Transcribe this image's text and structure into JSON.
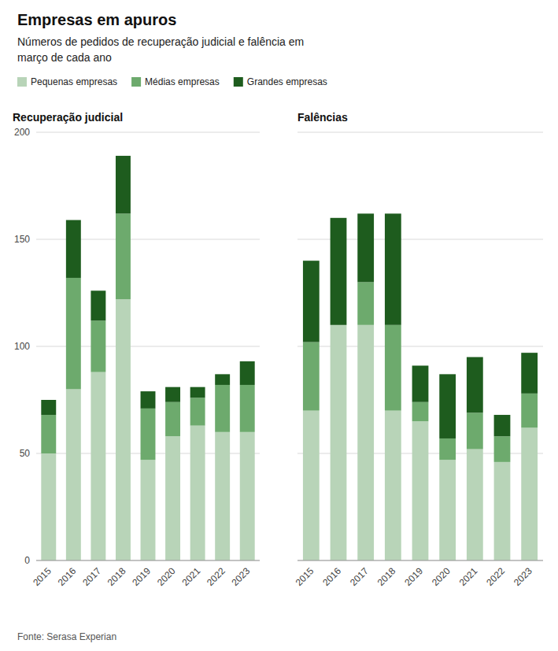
{
  "title": "Empresas em apuros",
  "subtitle": "Números de pedidos de recuperação judicial e falência em\nmarço de cada ano",
  "annotations": [
    "Fonte: Serasa Experian"
  ],
  "chart_data": [
    {
      "type": "bar",
      "stacked": true,
      "title": "Recuperação judicial",
      "categories": [
        "2015",
        "2016",
        "2017",
        "2018",
        "2019",
        "2020",
        "2021",
        "2022",
        "2023"
      ],
      "series": [
        {
          "name": "Pequenas empresas",
          "color": "#b8d4b8",
          "values": [
            50,
            80,
            88,
            122,
            47,
            58,
            63,
            60,
            60
          ]
        },
        {
          "name": "Médias empresas",
          "color": "#6daa6d",
          "values": [
            18,
            52,
            24,
            40,
            24,
            16,
            13,
            22,
            22
          ]
        },
        {
          "name": "Grandes empresas",
          "color": "#1e5c1e",
          "values": [
            7,
            27,
            14,
            27,
            8,
            7,
            5,
            5,
            11
          ]
        }
      ],
      "ylim": [
        0,
        200
      ],
      "yticks": [
        0,
        50,
        100,
        150,
        200
      ],
      "grid": true,
      "legend": "top"
    },
    {
      "type": "bar",
      "stacked": true,
      "title": "Falências",
      "categories": [
        "2015",
        "2016",
        "2017",
        "2018",
        "2019",
        "2020",
        "2021",
        "2022",
        "2023"
      ],
      "series": [
        {
          "name": "Pequenas empresas",
          "color": "#b8d4b8",
          "values": [
            70,
            110,
            110,
            70,
            65,
            47,
            52,
            46,
            62
          ]
        },
        {
          "name": "Médias empresas",
          "color": "#6daa6d",
          "values": [
            32,
            0,
            20,
            40,
            9,
            10,
            17,
            12,
            16
          ]
        },
        {
          "name": "Grandes empresas",
          "color": "#1e5c1e",
          "values": [
            38,
            50,
            32,
            52,
            17,
            30,
            26,
            10,
            19
          ]
        }
      ],
      "ylim": [
        0,
        200
      ],
      "yticks": [
        0,
        50,
        100,
        150,
        200
      ],
      "grid": true,
      "tick_labels": "x"
    }
  ]
}
